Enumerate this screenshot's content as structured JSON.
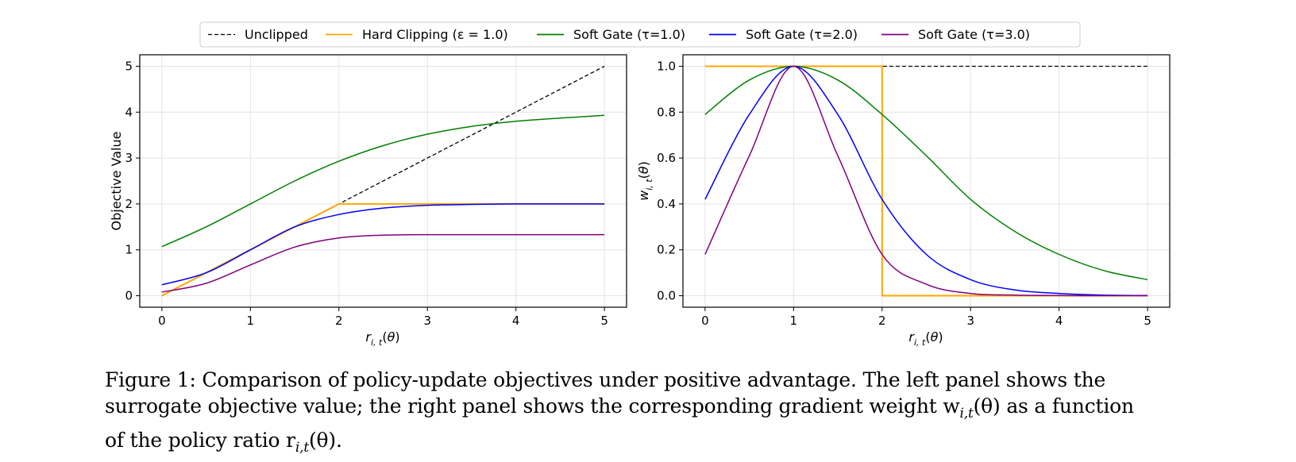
{
  "chart_data": [
    {
      "type": "line",
      "panel": "left",
      "title": "",
      "xlabel": "r_{i,t}(θ)",
      "ylabel": "Objective Value",
      "xlim": [
        -0.25,
        5.25
      ],
      "ylim": [
        -0.25,
        5.25
      ],
      "xticks": [
        0,
        1,
        2,
        3,
        4,
        5
      ],
      "yticks": [
        0,
        1,
        2,
        3,
        4,
        5
      ],
      "grid": true,
      "series": [
        {
          "name": "Unclipped",
          "color": "#000000",
          "dash": true,
          "x": [
            0,
            1,
            2,
            3,
            4,
            5
          ],
          "y": [
            0,
            1,
            2,
            3,
            4,
            5
          ]
        },
        {
          "name": "Hard Clipping (ε = 1.0)",
          "color": "#FFA500",
          "dash": false,
          "x": [
            0,
            1,
            2,
            3,
            4,
            5
          ],
          "y": [
            0,
            1,
            2,
            2,
            2,
            2
          ]
        },
        {
          "name": "Soft Gate (τ=1.0)",
          "color": "#008000",
          "dash": false,
          "x": [
            0,
            0.5,
            1,
            1.5,
            2,
            2.5,
            3,
            3.5,
            4,
            4.5,
            5
          ],
          "y": [
            1.07,
            1.5,
            2.0,
            2.5,
            2.93,
            3.27,
            3.52,
            3.69,
            3.8,
            3.87,
            3.93
          ]
        },
        {
          "name": "Soft Gate (τ=2.0)",
          "color": "#0000FF",
          "dash": false,
          "x": [
            0,
            0.5,
            1,
            1.5,
            2,
            2.5,
            3,
            3.5,
            4,
            4.5,
            5
          ],
          "y": [
            0.24,
            0.5,
            1.0,
            1.5,
            1.77,
            1.91,
            1.97,
            1.99,
            2.0,
            2.0,
            2.0
          ]
        },
        {
          "name": "Soft Gate (τ=3.0)",
          "color": "#800080",
          "dash": false,
          "x": [
            0,
            0.5,
            1,
            1.5,
            2,
            2.5,
            3,
            3.5,
            4,
            4.5,
            5
          ],
          "y": [
            0.08,
            0.27,
            0.67,
            1.06,
            1.26,
            1.32,
            1.33,
            1.33,
            1.33,
            1.33,
            1.33
          ]
        }
      ]
    },
    {
      "type": "line",
      "panel": "right",
      "title": "",
      "xlabel": "r_{i,t}(θ)",
      "ylabel": "w_{i,t}(θ)",
      "xlim": [
        -0.25,
        5.25
      ],
      "ylim": [
        -0.05,
        1.05
      ],
      "xticks": [
        0,
        1,
        2,
        3,
        4,
        5
      ],
      "yticks": [
        0.0,
        0.2,
        0.4,
        0.6,
        0.8,
        1.0
      ],
      "grid": true,
      "series": [
        {
          "name": "Unclipped",
          "color": "#000000",
          "dash": true,
          "x": [
            0,
            5
          ],
          "y": [
            1.0,
            1.0
          ]
        },
        {
          "name": "Hard Clipping (ε = 1.0)",
          "color": "#FFA500",
          "dash": false,
          "x": [
            0,
            2,
            2,
            5
          ],
          "y": [
            1.0,
            1.0,
            0.0,
            0.0
          ]
        },
        {
          "name": "Soft Gate (τ=1.0)",
          "color": "#008000",
          "dash": false,
          "x": [
            0,
            0.5,
            1,
            1.5,
            2,
            2.5,
            3,
            3.5,
            4,
            4.5,
            5
          ],
          "y": [
            0.79,
            0.94,
            1.0,
            0.94,
            0.79,
            0.61,
            0.42,
            0.28,
            0.18,
            0.11,
            0.07
          ]
        },
        {
          "name": "Soft Gate (τ=2.0)",
          "color": "#0000FF",
          "dash": false,
          "x": [
            0,
            0.5,
            1,
            1.5,
            2,
            2.5,
            3,
            3.5,
            4,
            4.5,
            5
          ],
          "y": [
            0.42,
            0.79,
            1.0,
            0.79,
            0.42,
            0.18,
            0.07,
            0.025,
            0.01,
            0.003,
            0.001
          ]
        },
        {
          "name": "Soft Gate (τ=3.0)",
          "color": "#800080",
          "dash": false,
          "x": [
            0,
            0.5,
            1,
            1.5,
            2,
            2.5,
            3,
            3.5,
            4,
            4.5,
            5
          ],
          "y": [
            0.18,
            0.61,
            1.0,
            0.61,
            0.18,
            0.05,
            0.01,
            0.003,
            0.001,
            0.0,
            0.0
          ]
        }
      ]
    }
  ],
  "legend": {
    "placement": "top-center",
    "entries": [
      {
        "label": "Unclipped",
        "color": "#000000",
        "dash": true
      },
      {
        "label": "Hard Clipping (ε = 1.0)",
        "color": "#FFA500",
        "dash": false
      },
      {
        "label": "Soft Gate (τ=1.0)",
        "color": "#008000",
        "dash": false
      },
      {
        "label": "Soft Gate (τ=2.0)",
        "color": "#0000FF",
        "dash": false
      },
      {
        "label": "Soft Gate (τ=3.0)",
        "color": "#800080",
        "dash": false
      }
    ]
  },
  "caption": {
    "line1": "Figure 1: Comparison of policy-update objectives under positive advantage. The left panel shows the",
    "line2": "surrogate objective value; the right panel shows the corresponding gradient weight w",
    "line2_sub": "i,t",
    "line2_tail": "(θ) as a function",
    "line3": "of the policy ratio r",
    "line3_sub": "i,t",
    "line3_tail": "(θ)."
  }
}
